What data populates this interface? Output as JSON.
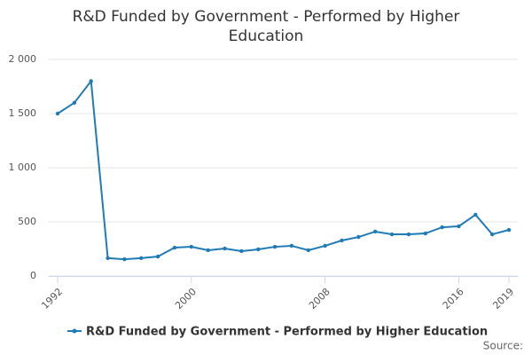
{
  "chart_data": {
    "type": "line",
    "title": "R&D Funded by Government - Performed by Higher Education",
    "source": "Source:",
    "x": [
      1992,
      1993,
      1994,
      1995,
      1996,
      1997,
      1998,
      1999,
      2000,
      2001,
      2002,
      2003,
      2004,
      2005,
      2006,
      2007,
      2008,
      2009,
      2010,
      2011,
      2012,
      2013,
      2014,
      2015,
      2016,
      2017,
      2018,
      2019
    ],
    "series": [
      {
        "name": "R&D Funded by Government - Performed by Higher Education",
        "color": "#1f7bb6",
        "values": [
          1500,
          1600,
          1800,
          165,
          155,
          165,
          180,
          262,
          270,
          238,
          254,
          230,
          246,
          270,
          279,
          238,
          279,
          328,
          360,
          410,
          385,
          385,
          393,
          450,
          459,
          566,
          385,
          426
        ]
      }
    ],
    "xlim": [
      1992,
      2019
    ],
    "xticks": [
      1992,
      2000,
      2008,
      2016,
      2019
    ],
    "ylim": [
      0,
      2000
    ],
    "yticks": [
      0,
      500,
      {
        "value": 1000,
        "label": "1 000"
      },
      {
        "value": 1500,
        "label": "1 500"
      },
      {
        "value": 2000,
        "label": "2 000"
      }
    ],
    "grid": true
  }
}
